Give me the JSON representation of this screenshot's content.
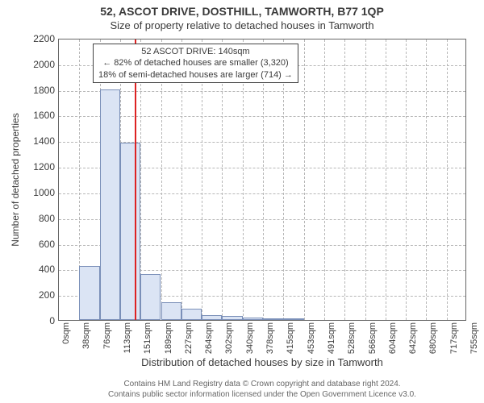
{
  "title_main": "52, ASCOT DRIVE, DOSTHILL, TAMWORTH, B77 1QP",
  "title_sub": "Size of property relative to detached houses in Tamworth",
  "ylabel": "Number of detached properties",
  "xlabel": "Distribution of detached houses by size in Tamworth",
  "chart": {
    "type": "histogram",
    "ylim": [
      0,
      2200
    ],
    "yticks": [
      0,
      200,
      400,
      600,
      800,
      1000,
      1200,
      1400,
      1600,
      1800,
      2000,
      2200
    ],
    "xticks": [
      "0sqm",
      "38sqm",
      "76sqm",
      "113sqm",
      "151sqm",
      "189sqm",
      "227sqm",
      "264sqm",
      "302sqm",
      "340sqm",
      "378sqm",
      "415sqm",
      "453sqm",
      "491sqm",
      "528sqm",
      "566sqm",
      "604sqm",
      "642sqm",
      "680sqm",
      "717sqm",
      "755sqm"
    ],
    "bar_fill": "#dbe4f4",
    "bar_border": "#7a8fb8",
    "grid_color": "#b7b7b7",
    "background_color": "#ffffff",
    "bar_width_ratio": 1.0,
    "values": [
      0,
      420,
      1800,
      1380,
      360,
      140,
      90,
      40,
      30,
      20,
      10,
      10,
      0,
      0,
      0,
      0,
      0,
      0,
      0,
      0
    ],
    "reference_line": {
      "sqm": 140,
      "color": "#d22",
      "width": 2
    }
  },
  "callout": {
    "line1": "52 ASCOT DRIVE: 140sqm",
    "line2": "← 82% of detached houses are smaller (3,320)",
    "line3": "18% of semi-detached houses are larger (714) →"
  },
  "attribution": {
    "line1": "Contains HM Land Registry data © Crown copyright and database right 2024.",
    "line2": "Contains public sector information licensed under the Open Government Licence v3.0."
  },
  "fonts": {
    "title_size_pt": 14,
    "sub_size_pt": 13,
    "axis_label_size_pt": 12,
    "tick_size_pt": 11,
    "callout_size_pt": 11,
    "attrib_size_pt": 10
  }
}
